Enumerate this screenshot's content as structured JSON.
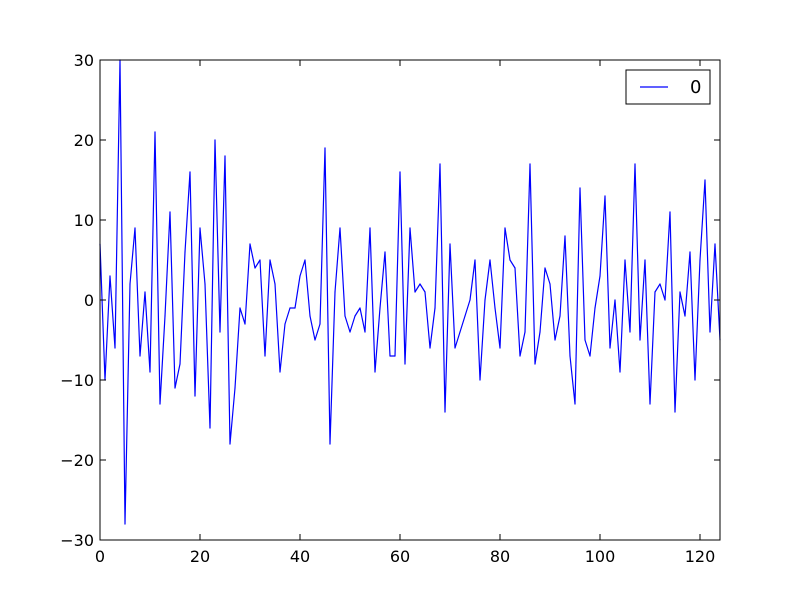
{
  "chart_data": {
    "type": "line",
    "title": "",
    "xlabel": "",
    "ylabel": "",
    "xlim": [
      0,
      124
    ],
    "ylim": [
      -30,
      30
    ],
    "grid": false,
    "legend_position": "top-right",
    "x_ticks": [
      0,
      20,
      40,
      60,
      80,
      100,
      120
    ],
    "x_tick_labels": [
      "0",
      "20",
      "40",
      "60",
      "80",
      "100",
      "120"
    ],
    "y_ticks": [
      -30,
      -20,
      -10,
      0,
      10,
      20,
      30
    ],
    "y_tick_labels": [
      "−30",
      "−20",
      "−10",
      "0",
      "10",
      "20",
      "30"
    ],
    "series": [
      {
        "name": "0",
        "color": "#0000ff",
        "x_start": 0,
        "values": [
          7,
          -10,
          3,
          -6,
          30,
          -28,
          2,
          9,
          -7,
          1,
          -9,
          21,
          -13,
          -2,
          11,
          -11,
          -8,
          6,
          16,
          -12,
          9,
          2,
          -16,
          20,
          -4,
          18,
          -18,
          -11,
          -1,
          -3,
          7,
          4,
          5,
          -7,
          5,
          2,
          -9,
          -3,
          -1,
          -1,
          3,
          5,
          -2,
          -5,
          -3,
          19,
          -18,
          1,
          9,
          -2,
          -4,
          -2,
          -1,
          -4,
          9,
          -9,
          -1,
          6,
          -7,
          -7,
          16,
          -8,
          9,
          1,
          2,
          1,
          -6,
          -1,
          17,
          -14,
          7,
          -6,
          -4,
          -2,
          0,
          5,
          -10,
          0,
          5,
          -1,
          -6,
          9,
          5,
          4,
          -7,
          -4,
          17,
          -8,
          -4,
          4,
          2,
          -5,
          -2,
          8,
          -7,
          -13,
          14,
          -5,
          -7,
          -1,
          3,
          13,
          -6,
          0,
          -9,
          5,
          -4,
          17,
          -5,
          5,
          -13,
          1,
          2,
          0,
          11,
          -14,
          1,
          -2,
          6,
          -10,
          5,
          15,
          -4,
          7,
          -5
        ]
      }
    ]
  }
}
